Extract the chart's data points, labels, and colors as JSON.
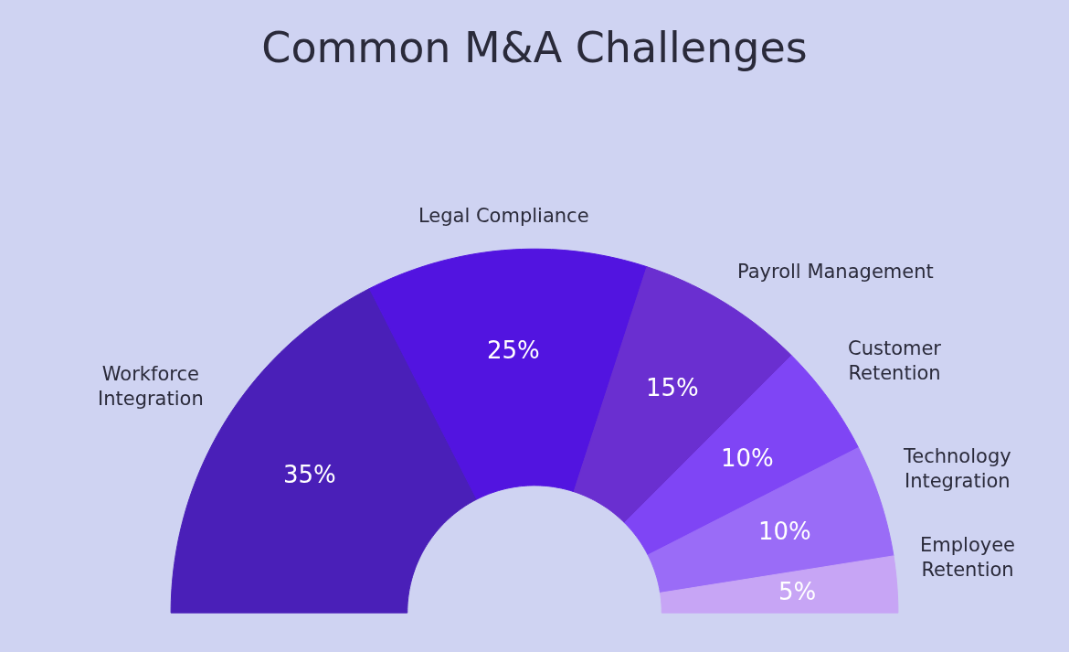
{
  "chart_data": {
    "type": "donut",
    "title": "Common M&A Challenges",
    "categories": [
      "Workforce Integration",
      "Legal Compliance",
      "Payroll Management",
      "Customer Retention",
      "Technology Integration",
      "Employee Retention"
    ],
    "values": [
      35,
      25,
      15,
      10,
      10,
      5
    ],
    "value_labels": [
      "35%",
      "25%",
      "15%",
      "10%",
      "10%",
      "5%"
    ],
    "colors": [
      "#4a1fb8",
      "#5214e0",
      "#6a2fd0",
      "#7f45f5",
      "#9a6cf7",
      "#c7a5f5"
    ]
  }
}
